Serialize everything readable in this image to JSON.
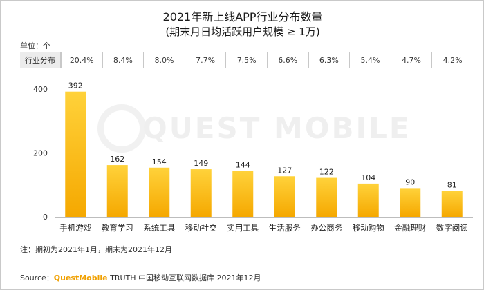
{
  "chart_data": {
    "type": "bar",
    "title": "2021年新上线APP行业分布数量",
    "subtitle": "(期末月日均活跃用户规模 ≥ 1万)",
    "unit_label": "单位：个",
    "share_row": {
      "header": "行业分布",
      "values": [
        "20.4%",
        "8.4%",
        "8.0%",
        "7.7%",
        "7.5%",
        "6.6%",
        "6.3%",
        "5.4%",
        "4.7%",
        "4.2%"
      ]
    },
    "categories": [
      "手机游戏",
      "教育学习",
      "系统工具",
      "移动社交",
      "实用工具",
      "生活服务",
      "办公商务",
      "移动购物",
      "金融理财",
      "数字阅读"
    ],
    "values": [
      392,
      162,
      154,
      149,
      144,
      127,
      122,
      104,
      90,
      81
    ],
    "y_ticks": [
      0,
      200,
      400
    ],
    "ylim": [
      0,
      400
    ],
    "xlabel": "",
    "ylabel": "",
    "grid": false,
    "bar_color_top": "#ffd23a",
    "bar_color_bottom": "#f5a800"
  },
  "watermark": "QUEST MOBILE",
  "note": "注：期初为2021年1月，期末为2021年12月",
  "source": {
    "prefix": "Source：",
    "brand": "QuestMobile",
    "rest": " TRUTH 中国移动互联网数据库 2021年12月"
  }
}
